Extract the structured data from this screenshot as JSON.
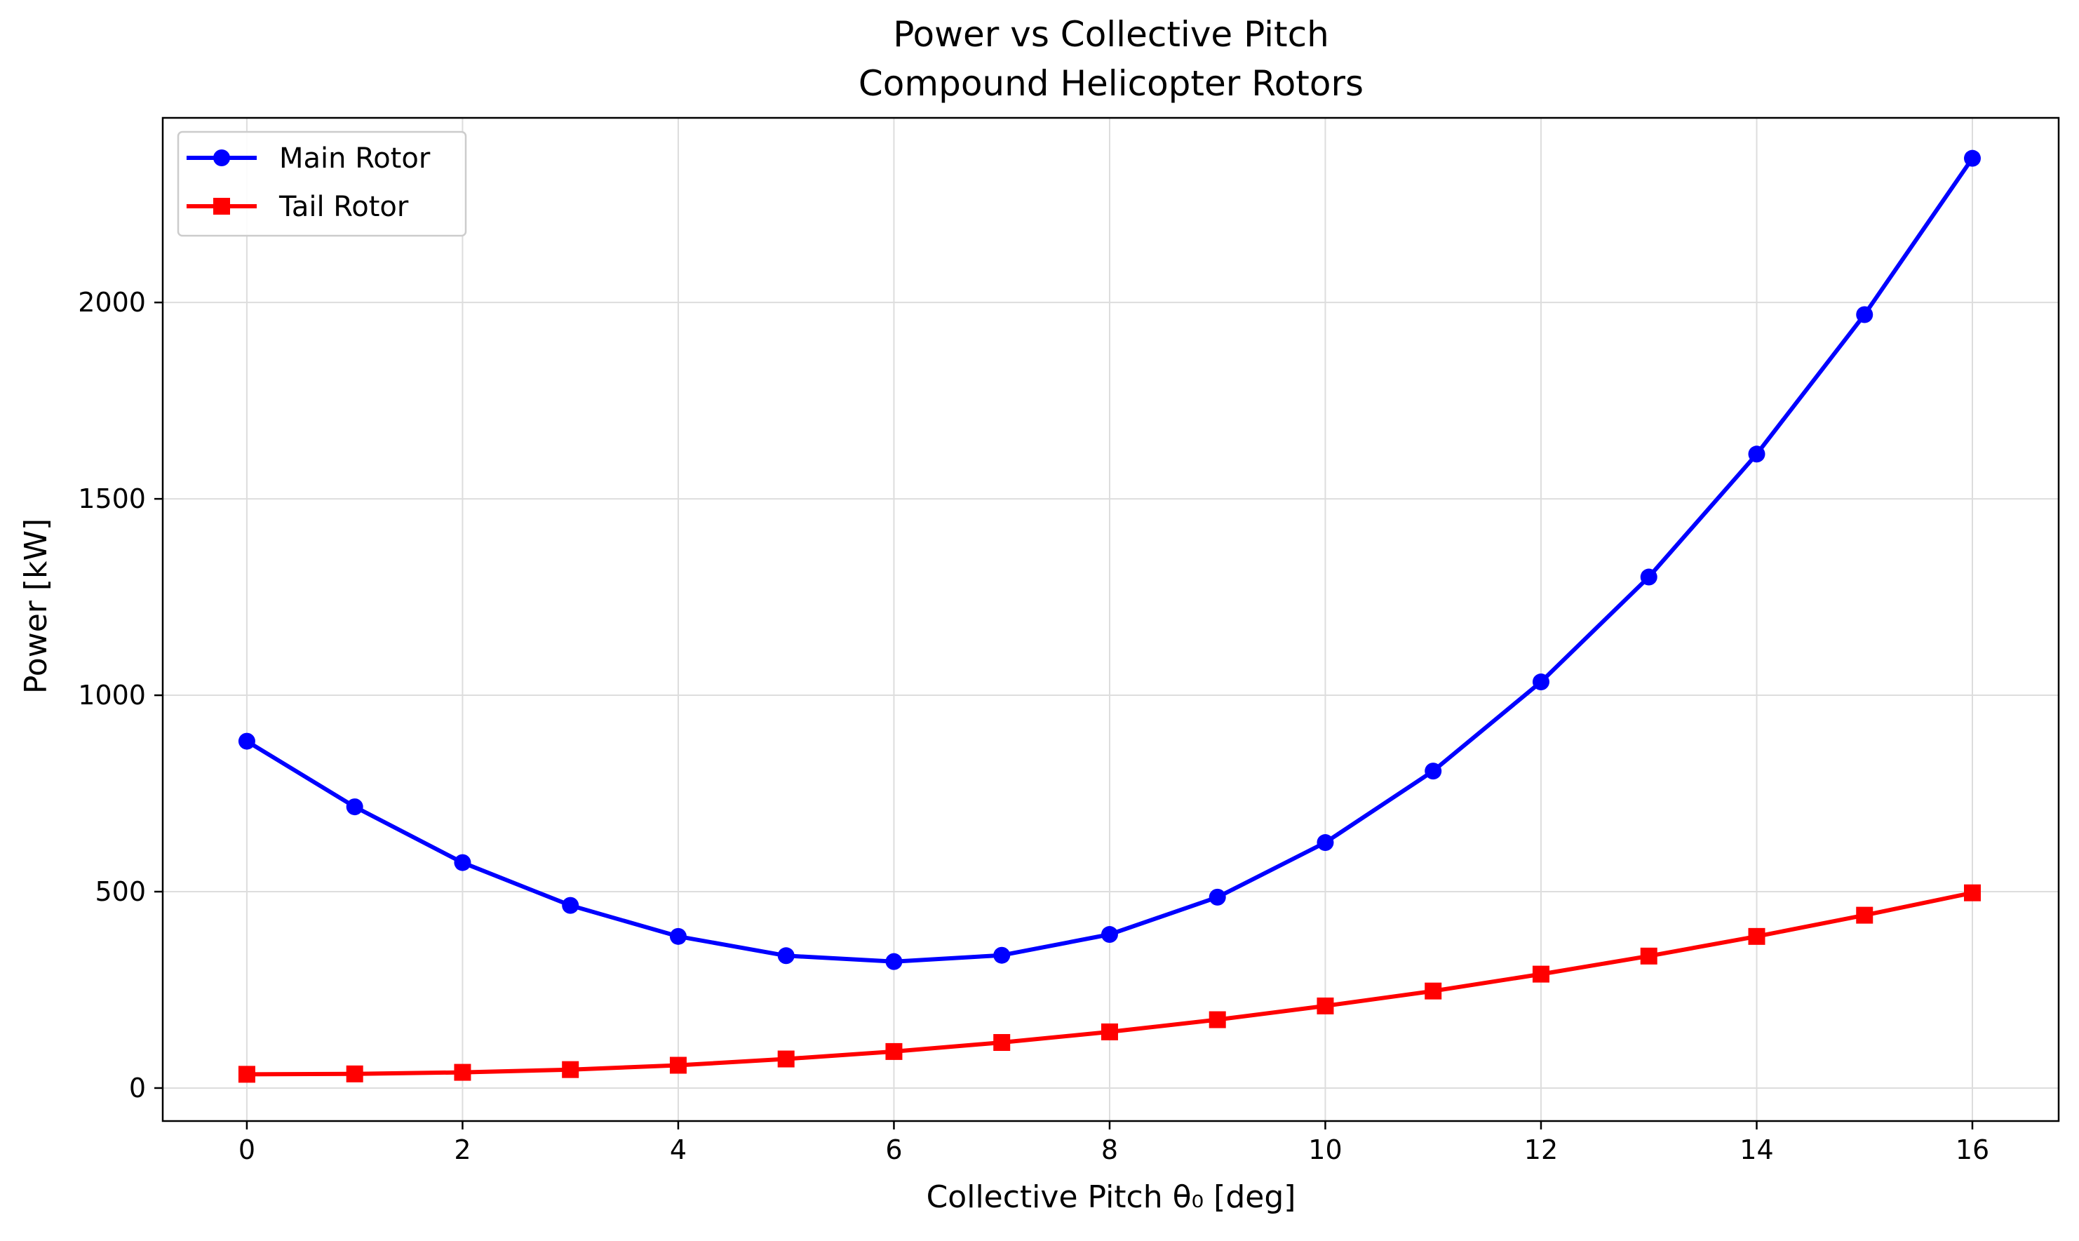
{
  "chart_data": {
    "type": "line",
    "title": "Power vs Collective Pitch",
    "subtitle": "Compound Helicopter Rotors",
    "xlabel": "Collective Pitch θ₀ [deg]",
    "ylabel": "Power [kW]",
    "xlim": [
      -0.78,
      16.8
    ],
    "ylim": [
      -84,
      2470
    ],
    "xticks": [
      0,
      2,
      4,
      6,
      8,
      10,
      12,
      14,
      16
    ],
    "yticks": [
      0,
      500,
      1000,
      1500,
      2000
    ],
    "grid": true,
    "legend_position": "upper-left",
    "x": [
      0,
      1,
      2,
      3,
      4,
      5,
      6,
      7,
      8,
      9,
      10,
      11,
      12,
      13,
      14,
      15,
      16
    ],
    "series": [
      {
        "name": "Main Rotor",
        "color": "#0000ff",
        "marker": "circle",
        "values": [
          883,
          716,
          574,
          465,
          386,
          337,
          322,
          338,
          391,
          486,
          625,
          807,
          1034,
          1301,
          1614,
          1969,
          2367
        ]
      },
      {
        "name": "Tail Rotor",
        "color": "#ff0000",
        "marker": "square",
        "values": [
          35,
          36,
          40,
          47,
          58,
          74,
          93,
          116,
          143,
          174,
          209,
          247,
          290,
          336,
          386,
          440,
          497
        ]
      }
    ]
  }
}
